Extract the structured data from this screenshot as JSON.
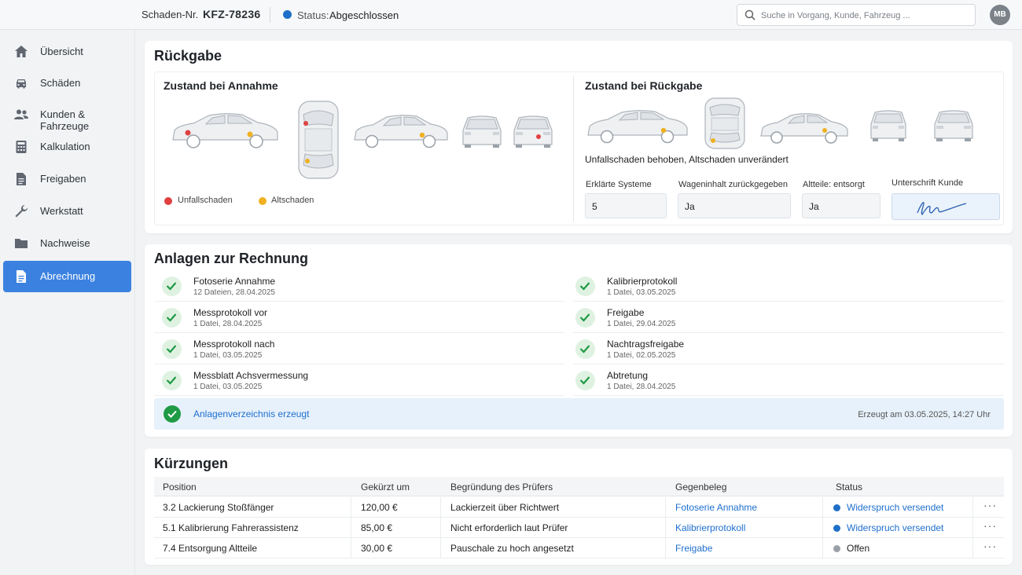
{
  "header": {
    "claim_label": "Schaden-Nr.",
    "claim_number": "KFZ-78236",
    "status_label": "Status:",
    "status_value": "Abgeschlossen",
    "status_color": "#1e6fc8",
    "search_placeholder": "Suche in Vorgang, Kunde, Fahrzeug ...",
    "avatar_initials": "MB"
  },
  "sidebar": {
    "items": [
      {
        "label": "Übersicht",
        "icon": "home-icon"
      },
      {
        "label": "Schäden",
        "icon": "car-icon"
      },
      {
        "label": "Kunden & Fahrzeuge",
        "icon": "people-icon"
      },
      {
        "label": "Kalkulation",
        "icon": "calculator-icon"
      },
      {
        "label": "Freigaben",
        "icon": "document-icon"
      },
      {
        "label": "Werkstatt",
        "icon": "wrench-icon"
      },
      {
        "label": "Nachweise",
        "icon": "folder-icon"
      },
      {
        "label": "Abrechnung",
        "icon": "document-icon",
        "active": true
      }
    ]
  },
  "rueckgabe": {
    "title": "Rückgabe",
    "annahme_title": "Zustand bei Annahme",
    "rueckgabe_title": "Zustand bei Rückgabe",
    "legend": [
      {
        "label": "Unfallschaden",
        "color": "#e04040"
      },
      {
        "label": "Altschaden",
        "color": "#f0b020"
      }
    ],
    "summary": "Unfallschaden behoben, Altschaden unverändert",
    "fields": [
      {
        "label": "Erklärte Systeme",
        "value": "5"
      },
      {
        "label": "Wageninhalt zurückgegeben",
        "value": "Ja"
      },
      {
        "label": "Altteile: entsorgt",
        "value": "Ja"
      }
    ],
    "signature_label": "Unterschrift Kunde"
  },
  "anlagen": {
    "title": "Anlagen zur Rechnung",
    "left": [
      {
        "name": "Fotoserie Annahme",
        "meta": "12 Dateien, 28.04.2025"
      },
      {
        "name": "Messprotokoll vor",
        "meta": "1 Datei, 28.04.2025"
      },
      {
        "name": "Messprotokoll nach",
        "meta": "1 Datei, 03.05.2025"
      },
      {
        "name": "Messblatt Achsvermessung",
        "meta": "1 Datei, 03.05.2025"
      }
    ],
    "right": [
      {
        "name": "Kalibrierprotokoll",
        "meta": "1 Datei, 03.05.2025"
      },
      {
        "name": "Freigabe",
        "meta": "1 Datei, 29.04.2025"
      },
      {
        "name": "Nachtragsfreigabe",
        "meta": "1 Datei, 02.05.2025"
      },
      {
        "name": "Abtretung",
        "meta": "1 Datei, 28.04.2025"
      }
    ],
    "banner_text": "Anlagenverzeichnis erzeugt",
    "banner_meta": "Erzeugt am 03.05.2025, 14:27 Uhr"
  },
  "kuerzungen": {
    "title": "Kürzungen",
    "columns": [
      "Position",
      "Gekürzt um",
      "Begründung des Prüfers",
      "Gegenbeleg",
      "Status"
    ],
    "rows": [
      {
        "position": "3.2 Lackierung Stoßfänger",
        "amount": "120,00 €",
        "reason": "Lackierzeit über Richtwert",
        "doc": "Fotoserie Annahme",
        "status": "Widerspruch versendet",
        "status_color": "#1e6fc8",
        "menu": "···"
      },
      {
        "position": "5.1 Kalibrierung Fahrerassistenz",
        "amount": "85,00 €",
        "reason": "Nicht erforderlich laut Prüfer",
        "doc": "Kalibrierprotokoll",
        "status": "Widerspruch versendet",
        "status_color": "#1e6fc8",
        "menu": "···"
      },
      {
        "position": "7.4 Entsorgung Altteile",
        "amount": "30,00 €",
        "reason": "Pauschale zu hoch angesetzt",
        "doc": "Freigabe",
        "status": "Offen",
        "status_color": "#9aa0a6",
        "menu": "···"
      }
    ]
  }
}
